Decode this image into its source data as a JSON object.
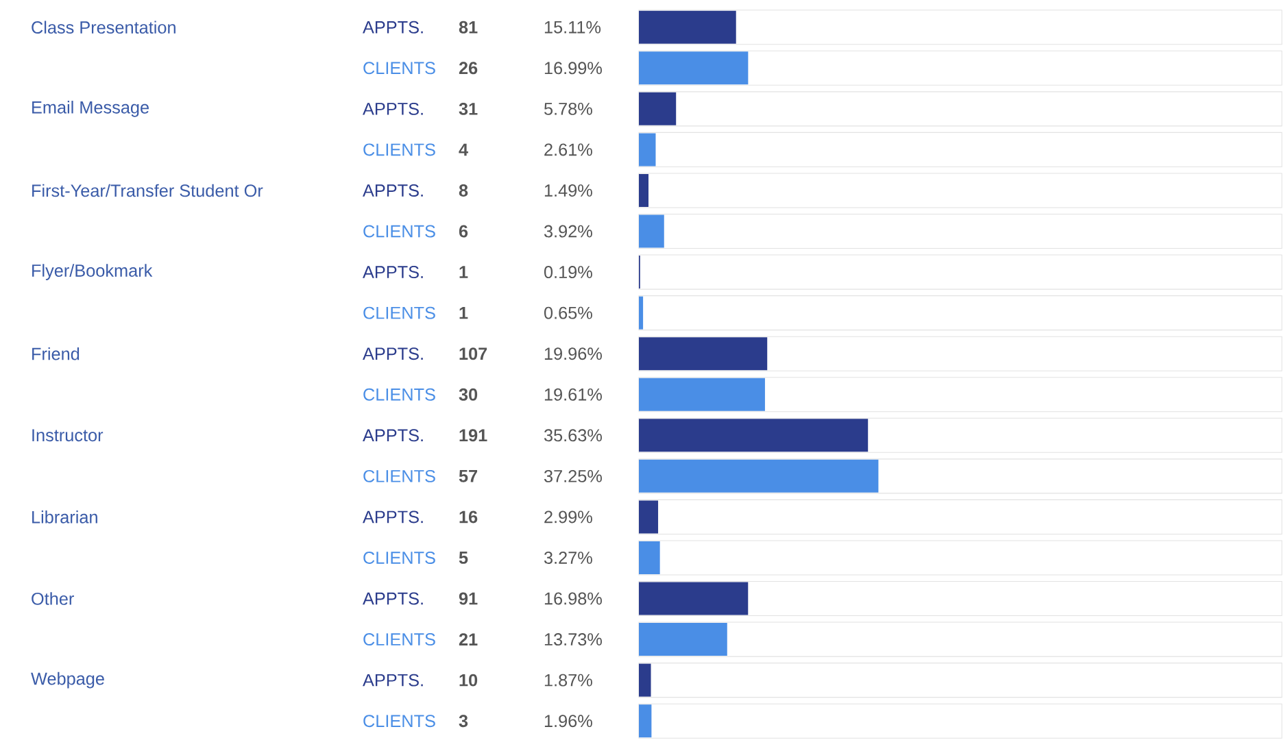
{
  "chart_data": {
    "type": "bar",
    "orientation": "horizontal",
    "xlim": [
      0,
      100
    ],
    "categories": [
      "Class Presentation",
      "Email Message",
      "First-Year/Transfer Student Or",
      "Flyer/Bookmark",
      "Friend",
      "Instructor",
      "Librarian",
      "Other",
      "Webpage"
    ],
    "series": [
      {
        "name": "APPTS.",
        "color": "#2b3c8c",
        "values": [
          15.11,
          5.78,
          1.49,
          0.19,
          19.96,
          35.63,
          2.99,
          16.98,
          1.87
        ],
        "value_labels": [
          "15.11%",
          "5.78%",
          "1.49%",
          "0.19%",
          "19.96%",
          "35.63%",
          "2.99%",
          "16.98%",
          "1.87%"
        ]
      },
      {
        "name": "CLIENTS",
        "color": "#4a8ee6",
        "values": [
          16.99,
          2.61,
          3.92,
          0.65,
          19.61,
          37.25,
          3.27,
          13.73,
          1.96
        ],
        "value_labels": [
          "16.99%",
          "2.61%",
          "3.92%",
          "0.65%",
          "19.61%",
          "37.25%",
          "3.27%",
          "13.73%",
          "1.96%"
        ]
      }
    ],
    "annotations": [
      "81",
      "26",
      "31",
      "4",
      "8",
      "6",
      "1",
      "1",
      "107",
      "30",
      "191",
      "57",
      "16",
      "5",
      "91",
      "21",
      "10",
      "3"
    ]
  }
}
